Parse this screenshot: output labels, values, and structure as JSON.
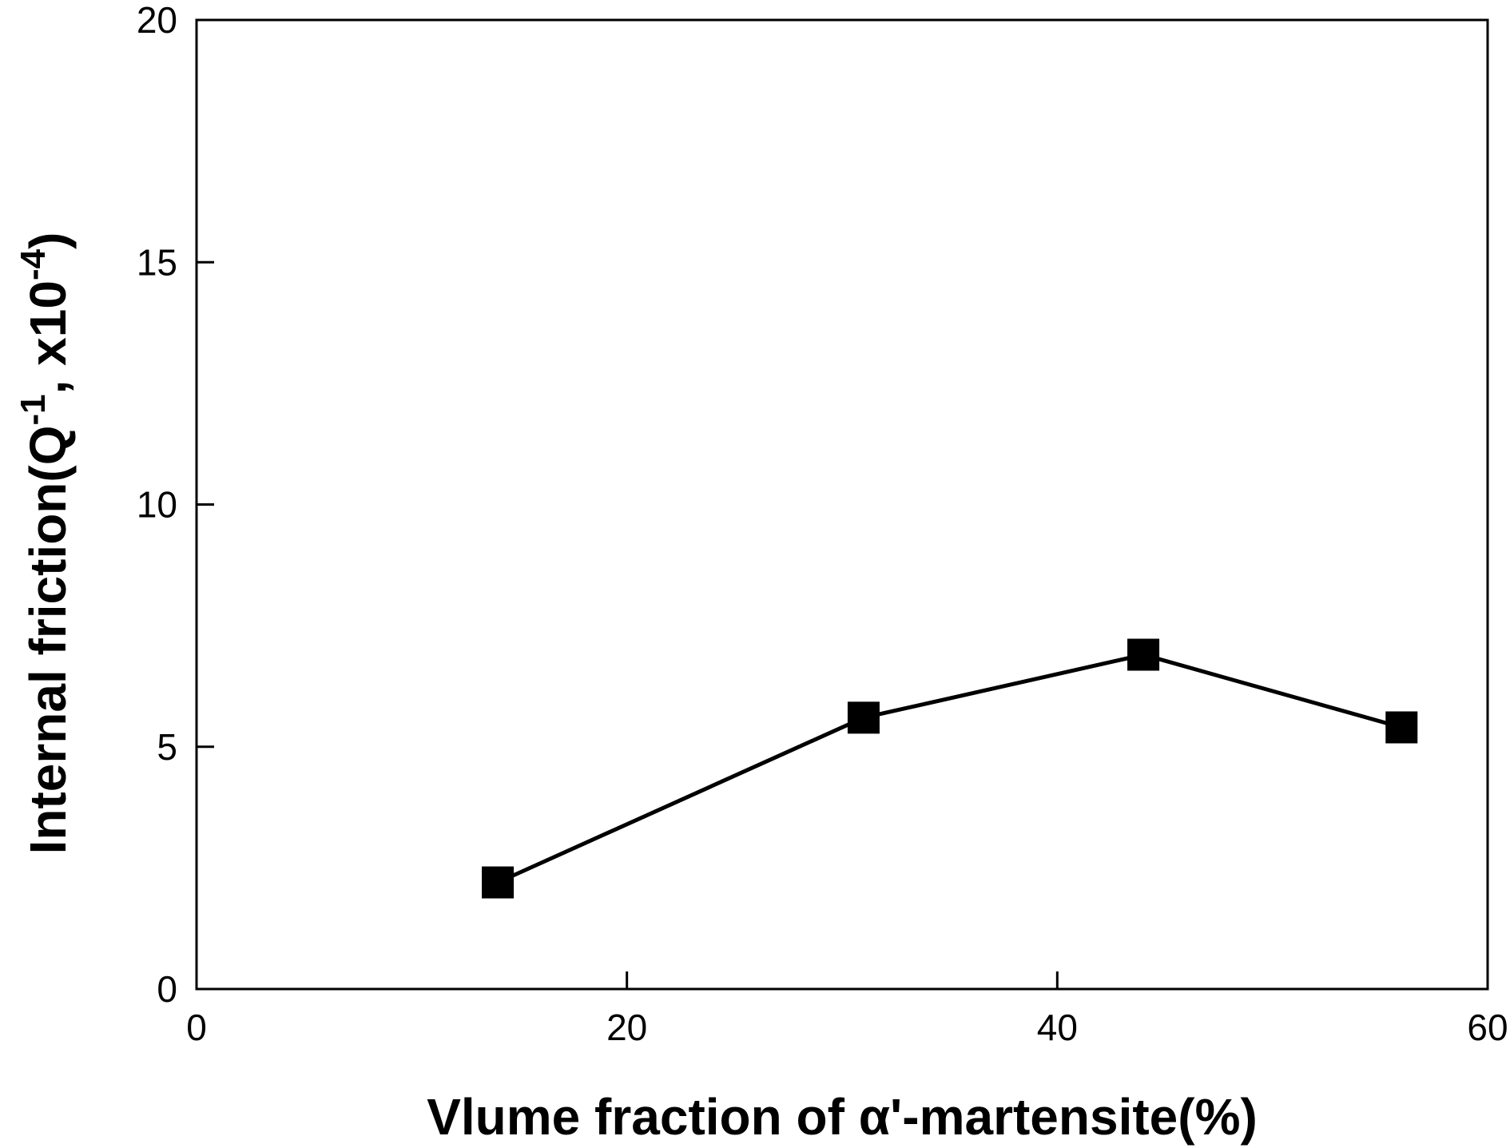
{
  "chart_data": {
    "type": "line",
    "title": "",
    "xlabel": "Vlume fraction of α'-martensite(%)",
    "ylabel": {
      "prefix": "Internal friction(Q",
      "sup1": "-1",
      "middle": ", x10",
      "sup2": "-4",
      "suffix": ")"
    },
    "xlim": [
      0,
      60
    ],
    "ylim": [
      0,
      20
    ],
    "x_ticks": [
      0,
      20,
      40,
      60
    ],
    "y_ticks": [
      0,
      5,
      10,
      15,
      20
    ],
    "grid": false,
    "legend": "none",
    "series": [
      {
        "marker": "square",
        "color": "#000000",
        "points": [
          {
            "x": 14,
            "y": 2.2
          },
          {
            "x": 31,
            "y": 5.6
          },
          {
            "x": 44,
            "y": 6.9
          },
          {
            "x": 56,
            "y": 5.4
          }
        ]
      }
    ]
  }
}
